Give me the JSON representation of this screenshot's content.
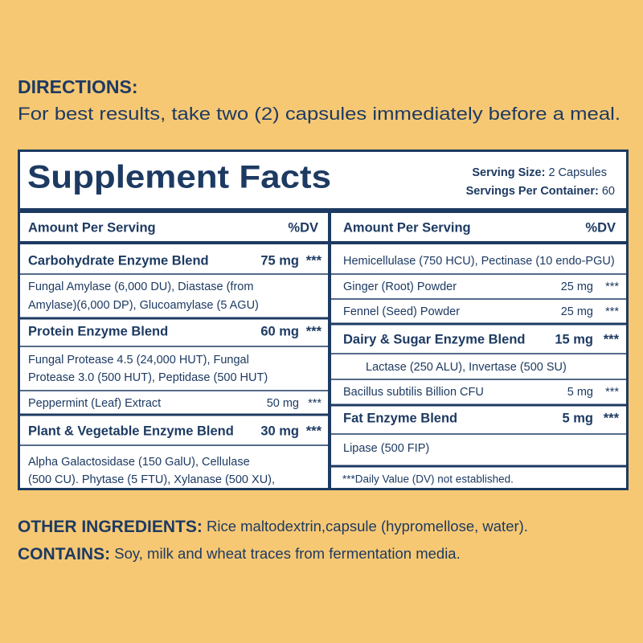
{
  "directions": {
    "label": "DIRECTIONS:",
    "text": "For best results, take two (2) capsules immediately before a meal."
  },
  "facts": {
    "title": "Supplement Facts",
    "serving_size": {
      "label": "Serving Size:",
      "value": "2 Capsules"
    },
    "servings_per_container": {
      "label": "Servings Per Container:",
      "value": "60"
    },
    "columns": [
      {
        "header": {
          "amount": "Amount Per Serving",
          "dv": "%DV"
        },
        "rows": [
          {
            "lines": [
              "Carbohydrate Enzyme Blend"
            ],
            "amount": "75 mg",
            "dv": "***"
          },
          {
            "lines": [
              "Fungal Amylase (6,000 DU), Diastase (from",
              "Amylase)(6,000 DP), Glucoamylase (5 AGU)"
            ]
          },
          {
            "lines": [
              "Protein Enzyme Blend"
            ],
            "amount": "60 mg",
            "dv": "***"
          },
          {
            "lines": [
              "Fungal Protease 4.5 (24,000 HUT), Fungal",
              "Protease 3.0 (500 HUT), Peptidase (500 HUT)"
            ]
          },
          {
            "lines": [
              "Peppermint (Leaf) Extract"
            ],
            "amount": "50 mg",
            "dv": "***"
          },
          {
            "lines": [
              "Plant & Vegetable Enzyme Blend"
            ],
            "amount": "30 mg",
            "dv": "***"
          },
          {
            "lines": [
              "Alpha Galactosidase (150 GalU), Cellulase",
              "(500 CU). Phytase (5 FTU), Xylanase (500 XU),"
            ]
          }
        ]
      },
      {
        "header": {
          "amount": "Amount Per Serving",
          "dv": "%DV"
        },
        "rows": [
          {
            "lines": [
              "Hemicellulase (750 HCU), Pectinase (10 endo-PGU)"
            ]
          },
          {
            "lines": [
              "Ginger (Root) Powder"
            ],
            "amount": "25 mg",
            "dv": "***"
          },
          {
            "lines": [
              "Fennel (Seed) Powder"
            ],
            "amount": "25 mg",
            "dv": "***"
          },
          {
            "lines": [
              "Dairy & Sugar Enzyme Blend"
            ],
            "amount": "15 mg",
            "dv": "***"
          },
          {
            "lines": [
              "Lactase (250 ALU), Invertase (500 SU)"
            ]
          },
          {
            "lines": [
              "Bacillus subtilis  Billion CFU"
            ],
            "amount": "5 mg",
            "dv": "***"
          },
          {
            "lines": [
              "Fat Enzyme Blend"
            ],
            "amount": "5 mg",
            "dv": "***"
          },
          {
            "lines": [
              "Lipase (500 FIP)"
            ]
          }
        ]
      }
    ],
    "footnote": "***Daily Value (DV) not established."
  },
  "other_ingredients": {
    "label": "OTHER INGREDIENTS:",
    "text": "Rice maltodextrin,capsule (hypromellose, water)."
  },
  "contains": {
    "label": "CONTAINS:",
    "text": "Soy, milk and wheat traces from fermentation media."
  }
}
